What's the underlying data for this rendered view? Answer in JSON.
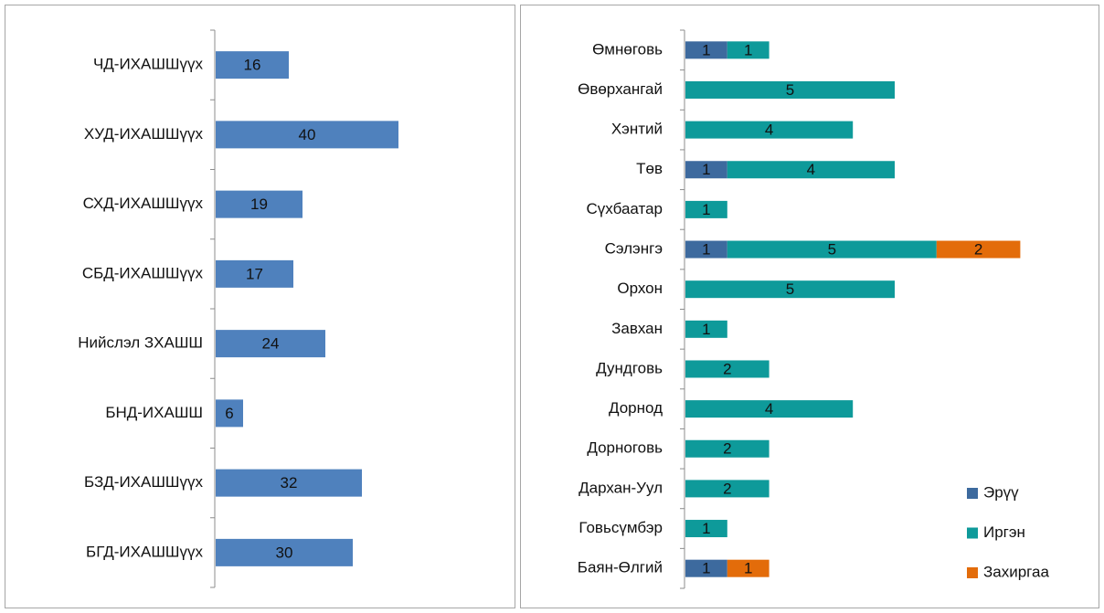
{
  "chart_data": [
    {
      "type": "bar",
      "categories": [
        "ЧД-ИХАШШүүх",
        "ХУД-ИХАШШүүх",
        "СХД-ИХАШШүүх",
        "СБД-ИХАШШүүх",
        "Нийслэл ЗХАШШ",
        "БНД-ИХАШШ",
        "БЗД-ИХАШШүүх",
        "БГД-ИХАШШүүх"
      ],
      "values": [
        16,
        40,
        19,
        17,
        24,
        6,
        32,
        30
      ],
      "color": "#4f81bd"
    },
    {
      "type": "stacked_bar",
      "categories": [
        "Өмнөговь",
        "Өвөрхангай",
        "Хэнтий",
        "Төв",
        "Сүхбаатар",
        "Сэлэнгэ",
        "Орхон",
        "Завхан",
        "Дундговь",
        "Дорнод",
        "Дорноговь",
        "Дархан-Уул",
        "Говьсүмбэр",
        "Баян-Өлгий"
      ],
      "series": [
        {
          "name": "Эрүү",
          "color": "#3d6a9e",
          "values": [
            1,
            null,
            null,
            1,
            null,
            1,
            null,
            null,
            null,
            null,
            null,
            null,
            null,
            1
          ]
        },
        {
          "name": "Иргэн",
          "color": "#0e9a9a",
          "values": [
            1,
            5,
            4,
            4,
            1,
            5,
            5,
            1,
            2,
            4,
            2,
            2,
            1,
            null
          ]
        },
        {
          "name": "Захиргаа",
          "color": "#e36c0a",
          "values": [
            null,
            null,
            null,
            null,
            null,
            2,
            null,
            null,
            null,
            null,
            null,
            null,
            null,
            1
          ]
        }
      ]
    }
  ]
}
